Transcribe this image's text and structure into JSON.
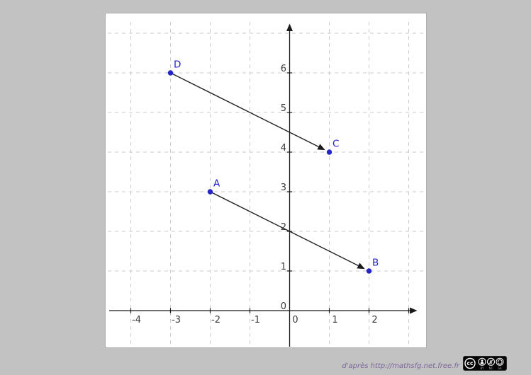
{
  "page": {
    "background": "#c2c2c2",
    "panel_background": "#ffffff"
  },
  "attribution": {
    "text": "d'après http://mathsfg.net.free.fr",
    "color": "#7b669b"
  },
  "cc_badge": {
    "logo": "cc",
    "items": [
      "BY",
      "NC",
      "SA"
    ],
    "background": "#000000"
  },
  "chart_data": {
    "type": "scatter",
    "title": "",
    "xlabel": "",
    "ylabel": "",
    "points": [
      {
        "label": "D",
        "x": -3,
        "y": 6
      },
      {
        "label": "C",
        "x": 1,
        "y": 4
      },
      {
        "label": "A",
        "x": -2,
        "y": 3
      },
      {
        "label": "B",
        "x": 2,
        "y": 1
      }
    ],
    "vectors": [
      {
        "from": "D",
        "to": "C"
      },
      {
        "from": "A",
        "to": "B"
      }
    ],
    "x_tick_labels": [
      -4,
      -3,
      -2,
      -1,
      0,
      1,
      2
    ],
    "y_tick_labels": [
      0,
      1,
      2,
      3,
      4,
      5,
      6
    ],
    "x_grid_ints": [
      -4,
      -3,
      -2,
      -1,
      1,
      2,
      3
    ],
    "y_grid_ints": [
      1,
      2,
      3,
      4,
      5,
      6,
      7
    ],
    "xlim": [
      -4.6,
      3.2
    ],
    "ylim": [
      -0.35,
      7.25
    ],
    "grid": "dashed",
    "legend": "none",
    "colors": {
      "point": "#2424c8",
      "point_label": "#2424c8",
      "axis": "#1b1b1b",
      "vector": "#1b1b1b",
      "grid": "#cacaca",
      "tick_text": "#3c3c3c"
    }
  }
}
